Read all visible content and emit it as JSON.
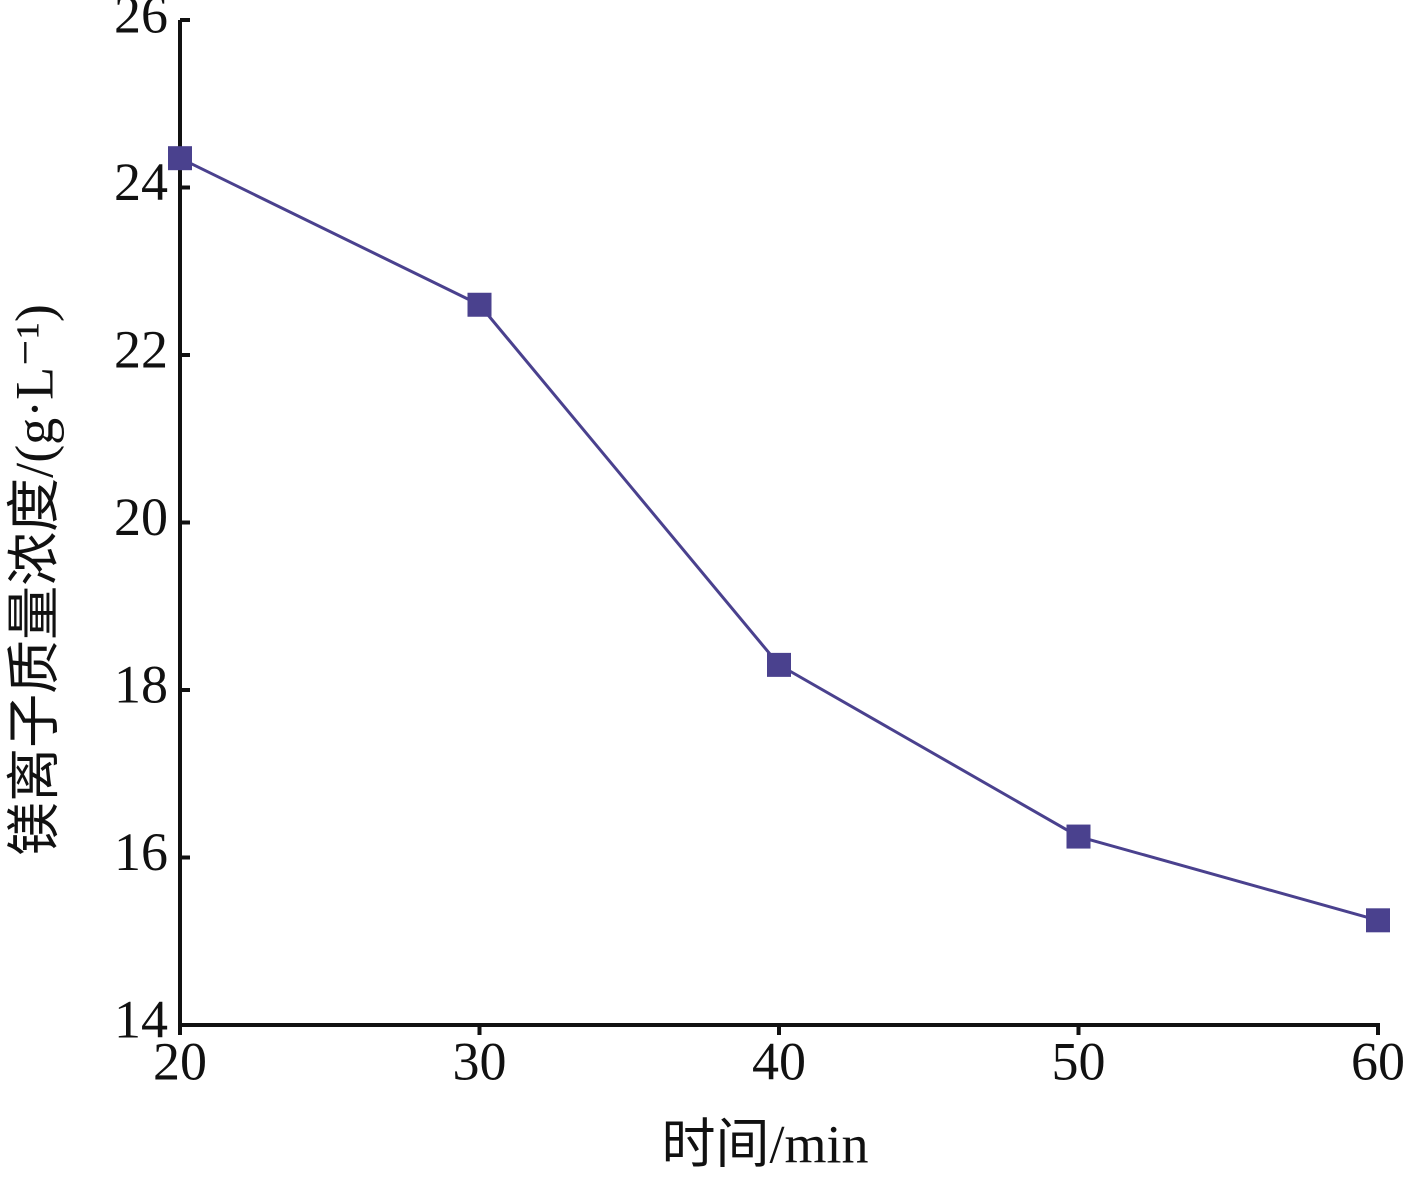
{
  "chart_data": {
    "type": "line",
    "x_label": "时间/min",
    "y_label": "镁离子质量浓度/(g·L⁻¹)",
    "x": [
      20,
      30,
      40,
      50,
      60
    ],
    "series": [
      {
        "color": "#4a418e",
        "values": [
          24.35,
          22.6,
          18.3,
          16.25,
          15.25
        ]
      }
    ],
    "xlim": [
      20,
      60
    ],
    "xticks": [
      20,
      30,
      40,
      50,
      60
    ],
    "ylim": [
      14,
      26
    ],
    "yticks": [
      14,
      16,
      18,
      20,
      22,
      24,
      26
    ],
    "grid": false
  }
}
